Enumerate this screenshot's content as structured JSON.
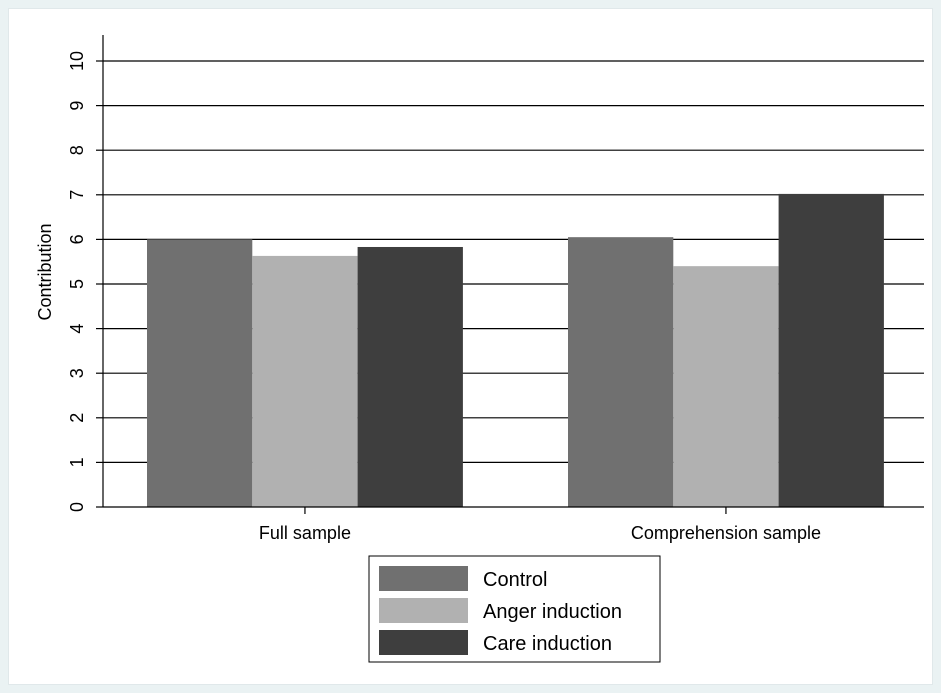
{
  "chart_data": {
    "type": "bar",
    "title": "",
    "xlabel": "",
    "ylabel": "Contribution",
    "ylim": [
      0,
      10
    ],
    "yticks": [
      "0",
      "1",
      "2",
      "3",
      "4",
      "5",
      "6",
      "7",
      "8",
      "9",
      "10"
    ],
    "categories": [
      "Full sample",
      "Comprehension sample"
    ],
    "series": [
      {
        "name": "Control",
        "color": "#707070",
        "values": [
          6.0,
          6.05
        ]
      },
      {
        "name": "Anger induction",
        "color": "#b1b1b1",
        "values": [
          5.63,
          5.4
        ]
      },
      {
        "name": "Care induction",
        "color": "#3e3e3e",
        "values": [
          5.83,
          7.02
        ]
      }
    ],
    "grid": true,
    "legend_position": "bottom-center"
  }
}
